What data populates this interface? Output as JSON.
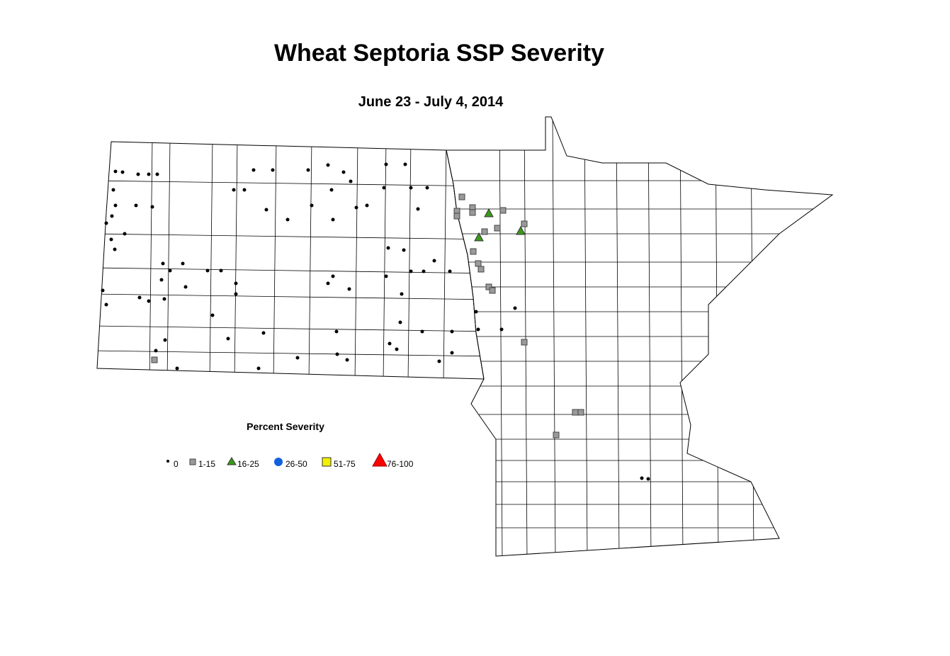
{
  "title": "Wheat Septoria SSP Severity",
  "subtitle": "June 23 - July 4, 2014",
  "legend": {
    "title": "Percent Severity",
    "items": [
      {
        "label": "0",
        "color": "#000000"
      },
      {
        "label": "1-15",
        "color": "#9a9a9a"
      },
      {
        "label": "16-25",
        "color": "#3a9a1a"
      },
      {
        "label": "26-50",
        "color": "#1060e0"
      },
      {
        "label": "51-75",
        "color": "#f0f000"
      },
      {
        "label": "76-100",
        "color": "#ff0000"
      }
    ]
  }
}
